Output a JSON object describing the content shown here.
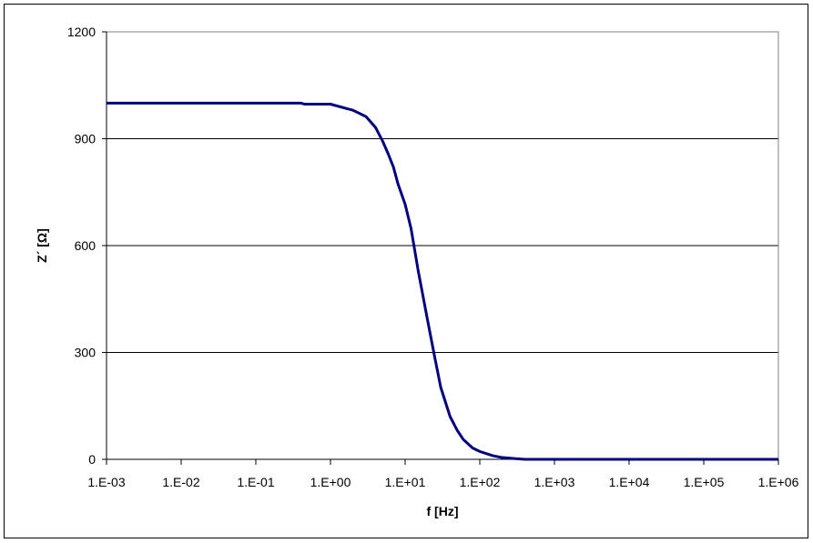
{
  "chart_data": {
    "type": "line",
    "title": "",
    "xlabel": "f [Hz]",
    "ylabel": "Z´ [Ω]",
    "x_scale": "log",
    "xlim": [
      0.001,
      1000000
    ],
    "ylim": [
      0,
      1200
    ],
    "x_ticks": [
      "1.E-03",
      "1.E-02",
      "1.E-01",
      "1.E+00",
      "1.E+01",
      "1.E+02",
      "1.E+03",
      "1.E+04",
      "1.E+05",
      "1.E+06"
    ],
    "y_ticks": [
      "0",
      "300",
      "600",
      "900",
      "1200"
    ],
    "grid": "horizontal",
    "legend": "none",
    "series": [
      {
        "color": "#000080",
        "x": [
          0.001,
          0.01,
          0.1,
          0.4,
          0.45,
          1,
          2,
          3,
          4,
          5,
          6,
          7,
          8,
          10,
          12,
          15,
          20,
          25,
          30,
          40,
          50,
          60,
          80,
          100,
          150,
          200,
          300,
          400,
          1000,
          10000,
          100000,
          1000000
        ],
        "y": [
          1000,
          1000,
          1000,
          1000,
          997,
          997,
          980,
          962,
          932,
          893,
          855,
          819,
          774,
          716,
          648,
          528,
          390,
          285,
          202,
          120,
          81,
          56,
          32,
          22,
          10,
          5,
          2,
          0,
          0,
          0,
          0,
          0
        ]
      }
    ]
  }
}
